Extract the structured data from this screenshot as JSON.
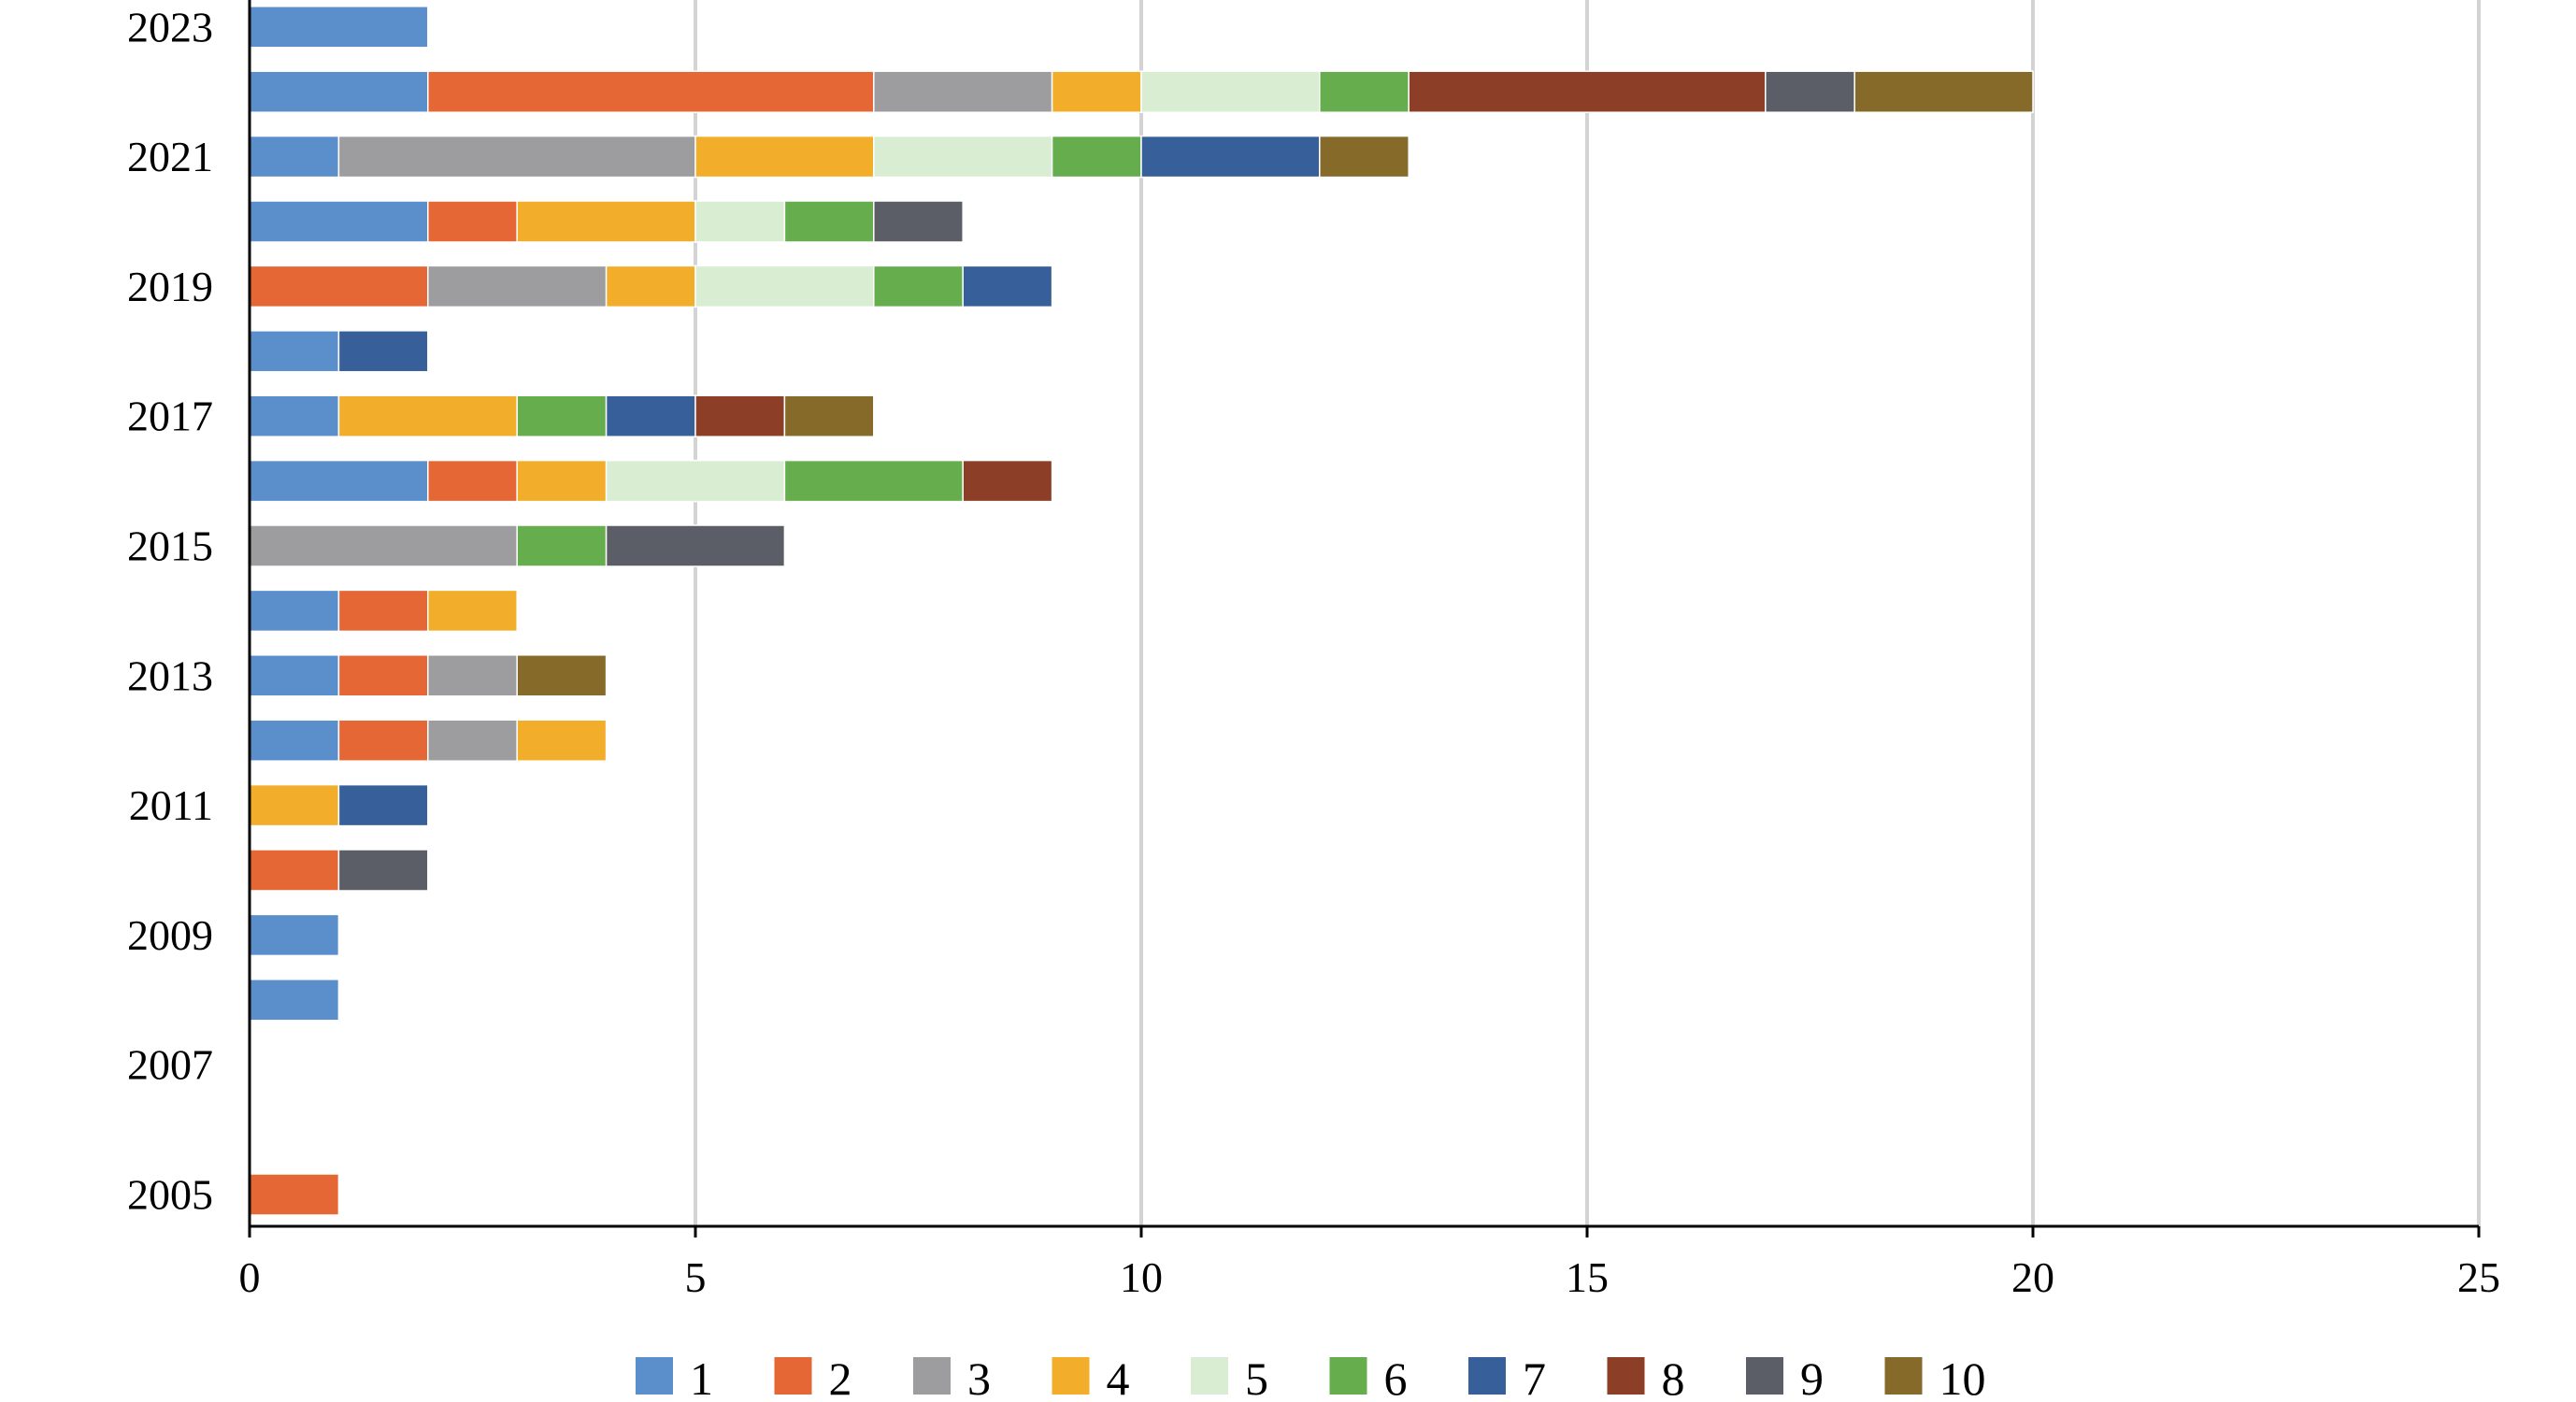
{
  "chart_data": {
    "type": "bar",
    "orientation": "horizontal",
    "stacked": true,
    "categories": [
      "2005",
      "2006",
      "2007",
      "2008",
      "2009",
      "2010",
      "2011",
      "2012",
      "2013",
      "2014",
      "2015",
      "2016",
      "2017",
      "2018",
      "2019",
      "2020",
      "2021",
      "2022",
      "2023"
    ],
    "y_tick_labels": [
      "2005",
      "2007",
      "2009",
      "2011",
      "2013",
      "2015",
      "2017",
      "2019",
      "2021",
      "2023"
    ],
    "x_ticks": [
      "0",
      "5",
      "10",
      "15",
      "20",
      "25"
    ],
    "xlim": [
      0,
      25
    ],
    "grid": "vertical",
    "legend_position": "bottom",
    "series": [
      {
        "name": "1",
        "color": "#5B8FCC",
        "values": [
          0,
          0,
          0,
          1,
          1,
          0,
          0,
          1,
          1,
          1,
          0,
          2,
          1,
          1,
          0,
          2,
          1,
          2,
          2
        ]
      },
      {
        "name": "2",
        "color": "#E46735",
        "values": [
          1,
          0,
          0,
          0,
          0,
          1,
          0,
          1,
          1,
          1,
          0,
          1,
          0,
          0,
          2,
          1,
          0,
          5,
          0
        ]
      },
      {
        "name": "3",
        "color": "#9D9DA0",
        "values": [
          0,
          0,
          0,
          0,
          0,
          0,
          0,
          1,
          1,
          0,
          3,
          0,
          0,
          0,
          2,
          0,
          4,
          2,
          0
        ]
      },
      {
        "name": "4",
        "color": "#F2AE2A",
        "values": [
          0,
          0,
          0,
          0,
          0,
          0,
          1,
          1,
          0,
          1,
          0,
          1,
          2,
          0,
          1,
          2,
          2,
          1,
          0
        ]
      },
      {
        "name": "5",
        "color": "#D8EDD2",
        "values": [
          0,
          0,
          0,
          0,
          0,
          0,
          0,
          0,
          0,
          0,
          0,
          2,
          0,
          0,
          2,
          1,
          2,
          2,
          0
        ]
      },
      {
        "name": "6",
        "color": "#66AD4D",
        "values": [
          0,
          0,
          0,
          0,
          0,
          0,
          0,
          0,
          0,
          0,
          1,
          2,
          1,
          0,
          1,
          1,
          1,
          1,
          0
        ]
      },
      {
        "name": "7",
        "color": "#37609A",
        "values": [
          0,
          0,
          0,
          0,
          0,
          0,
          1,
          0,
          0,
          0,
          0,
          0,
          1,
          1,
          1,
          0,
          2,
          0,
          0
        ]
      },
      {
        "name": "8",
        "color": "#8C3F26",
        "values": [
          0,
          0,
          0,
          0,
          0,
          0,
          0,
          0,
          0,
          0,
          0,
          1,
          1,
          0,
          0,
          0,
          0,
          4,
          0
        ]
      },
      {
        "name": "9",
        "color": "#5B5E66",
        "values": [
          0,
          0,
          0,
          0,
          0,
          1,
          0,
          0,
          0,
          0,
          2,
          0,
          0,
          0,
          0,
          1,
          0,
          1,
          0
        ]
      },
      {
        "name": "10",
        "color": "#856A2A",
        "values": [
          0,
          0,
          0,
          0,
          0,
          0,
          0,
          0,
          1,
          0,
          0,
          0,
          1,
          0,
          0,
          0,
          1,
          2,
          0
        ]
      }
    ]
  }
}
